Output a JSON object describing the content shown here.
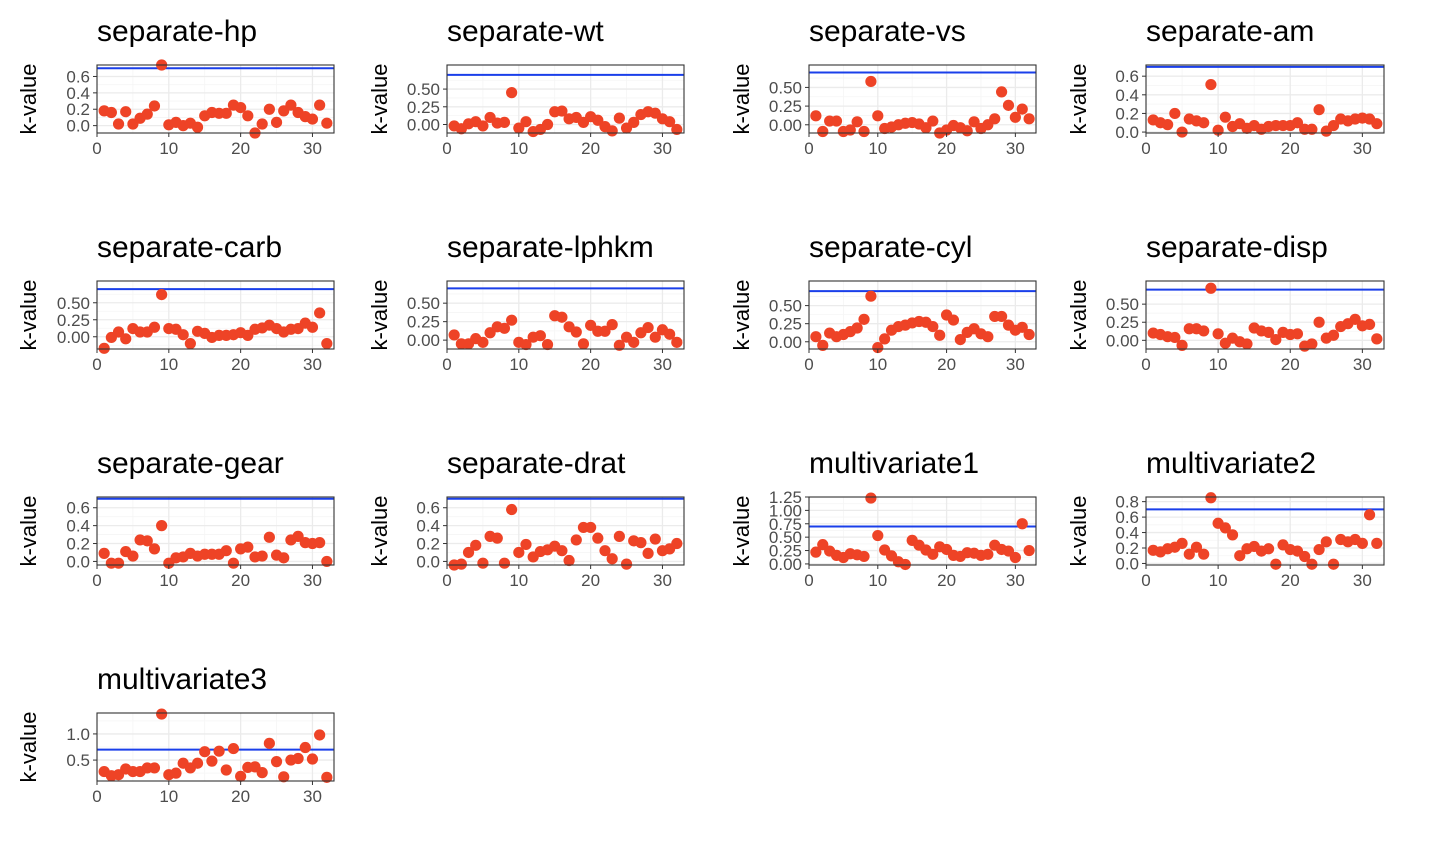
{
  "chart_data": [
    {
      "type": "scatter",
      "title": "separate-hp",
      "ylabel": "k-value",
      "xlim": [
        0,
        33
      ],
      "ylim": [
        -0.09,
        0.74
      ],
      "xticks": [
        0,
        10,
        20,
        30
      ],
      "yticks": [
        0.0,
        0.2,
        0.4,
        0.6
      ],
      "ytick_labels": [
        "0.0",
        "0.2",
        "0.4",
        "0.6"
      ],
      "threshold": 0.7,
      "x": [
        1,
        2,
        3,
        4,
        5,
        6,
        7,
        8,
        9,
        10,
        11,
        12,
        13,
        14,
        15,
        16,
        17,
        18,
        19,
        20,
        21,
        22,
        23,
        24,
        25,
        26,
        27,
        28,
        29,
        30,
        31,
        32
      ],
      "y": [
        0.18,
        0.16,
        0.02,
        0.17,
        0.02,
        0.09,
        0.14,
        0.24,
        0.74,
        0.01,
        0.04,
        0.0,
        0.03,
        -0.02,
        0.12,
        0.16,
        0.15,
        0.15,
        0.25,
        0.22,
        0.12,
        -0.09,
        0.02,
        0.2,
        0.04,
        0.18,
        0.25,
        0.16,
        0.11,
        0.08,
        0.25,
        0.03
      ]
    },
    {
      "type": "scatter",
      "title": "separate-wt",
      "ylabel": "k-value",
      "xlim": [
        0,
        33
      ],
      "ylim": [
        -0.12,
        0.84
      ],
      "xticks": [
        0,
        10,
        20,
        30
      ],
      "yticks": [
        0.0,
        0.25,
        0.5
      ],
      "ytick_labels": [
        "0.00",
        "0.25",
        "0.50"
      ],
      "threshold": 0.7,
      "x": [
        1,
        2,
        3,
        4,
        5,
        6,
        7,
        8,
        9,
        10,
        11,
        12,
        13,
        14,
        15,
        16,
        17,
        18,
        19,
        20,
        21,
        22,
        23,
        24,
        25,
        26,
        27,
        28,
        29,
        30,
        31,
        32
      ],
      "y": [
        -0.02,
        -0.06,
        0.01,
        0.04,
        -0.02,
        0.1,
        0.02,
        0.03,
        0.45,
        -0.05,
        0.04,
        -0.1,
        -0.07,
        0.0,
        0.18,
        0.19,
        0.08,
        0.1,
        0.03,
        0.11,
        0.06,
        -0.03,
        -0.09,
        0.09,
        -0.05,
        0.03,
        0.14,
        0.18,
        0.16,
        0.08,
        0.04,
        -0.07
      ]
    },
    {
      "type": "scatter",
      "title": "separate-vs",
      "ylabel": "k-value",
      "xlim": [
        0,
        33
      ],
      "ylim": [
        -0.11,
        0.8
      ],
      "xticks": [
        0,
        10,
        20,
        30
      ],
      "yticks": [
        0.0,
        0.25,
        0.5
      ],
      "ytick_labels": [
        "0.00",
        "0.25",
        "0.50"
      ],
      "threshold": 0.7,
      "x": [
        1,
        2,
        3,
        4,
        5,
        6,
        7,
        8,
        9,
        10,
        11,
        12,
        13,
        14,
        15,
        16,
        17,
        18,
        19,
        20,
        21,
        22,
        23,
        24,
        25,
        26,
        27,
        28,
        29,
        30,
        31,
        32
      ],
      "y": [
        0.12,
        -0.09,
        0.05,
        0.05,
        -0.09,
        -0.07,
        0.04,
        -0.09,
        0.58,
        0.12,
        -0.05,
        -0.03,
        0.0,
        0.02,
        0.03,
        0.01,
        -0.04,
        0.05,
        -0.11,
        -0.07,
        -0.01,
        -0.04,
        -0.08,
        0.04,
        -0.05,
        0.0,
        0.08,
        0.44,
        0.26,
        0.1,
        0.21,
        0.08
      ]
    },
    {
      "type": "scatter",
      "title": "separate-am",
      "ylabel": "k-value",
      "xlim": [
        0,
        33
      ],
      "ylim": [
        -0.01,
        0.72
      ],
      "xticks": [
        0,
        10,
        20,
        30
      ],
      "yticks": [
        0.0,
        0.2,
        0.4,
        0.6
      ],
      "ytick_labels": [
        "0.0",
        "0.2",
        "0.4",
        "0.6"
      ],
      "threshold": 0.7,
      "x": [
        1,
        2,
        3,
        4,
        5,
        6,
        7,
        8,
        9,
        10,
        11,
        12,
        13,
        14,
        15,
        16,
        17,
        18,
        19,
        20,
        21,
        22,
        23,
        24,
        25,
        26,
        27,
        28,
        29,
        30,
        31,
        32
      ],
      "y": [
        0.13,
        0.1,
        0.08,
        0.2,
        0.0,
        0.14,
        0.12,
        0.1,
        0.51,
        0.02,
        0.16,
        0.06,
        0.09,
        0.04,
        0.07,
        0.03,
        0.06,
        0.07,
        0.07,
        0.07,
        0.1,
        0.03,
        0.03,
        0.24,
        0.01,
        0.07,
        0.14,
        0.12,
        0.14,
        0.15,
        0.14,
        0.09
      ]
    },
    {
      "type": "scatter",
      "title": "separate-carb",
      "ylabel": "k-value",
      "xlim": [
        0,
        33
      ],
      "ylim": [
        -0.18,
        0.82
      ],
      "xticks": [
        0,
        10,
        20,
        30
      ],
      "yticks": [
        0.0,
        0.25,
        0.5
      ],
      "ytick_labels": [
        "0.00",
        "0.25",
        "0.50"
      ],
      "threshold": 0.7,
      "x": [
        1,
        2,
        3,
        4,
        5,
        6,
        7,
        8,
        9,
        10,
        11,
        12,
        13,
        14,
        15,
        16,
        17,
        18,
        19,
        20,
        21,
        22,
        23,
        24,
        25,
        26,
        27,
        28,
        29,
        30,
        31,
        32
      ],
      "y": [
        -0.17,
        -0.01,
        0.07,
        -0.03,
        0.12,
        0.07,
        0.07,
        0.14,
        0.62,
        0.12,
        0.11,
        0.03,
        -0.1,
        0.08,
        0.05,
        -0.01,
        0.02,
        0.02,
        0.03,
        0.06,
        0.02,
        0.11,
        0.13,
        0.17,
        0.12,
        0.07,
        0.11,
        0.12,
        0.2,
        0.14,
        0.35,
        -0.1
      ]
    },
    {
      "type": "scatter",
      "title": "separate-lphkm",
      "ylabel": "k-value",
      "xlim": [
        0,
        33
      ],
      "ylim": [
        -0.12,
        0.8
      ],
      "xticks": [
        0,
        10,
        20,
        30
      ],
      "yticks": [
        0.0,
        0.25,
        0.5
      ],
      "ytick_labels": [
        "0.00",
        "0.25",
        "0.50"
      ],
      "threshold": 0.7,
      "x": [
        1,
        2,
        3,
        4,
        5,
        6,
        7,
        8,
        9,
        10,
        11,
        12,
        13,
        14,
        15,
        16,
        17,
        18,
        19,
        20,
        21,
        22,
        23,
        24,
        25,
        26,
        27,
        28,
        29,
        30,
        31,
        32
      ],
      "y": [
        0.07,
        -0.05,
        -0.05,
        0.02,
        -0.03,
        0.1,
        0.18,
        0.16,
        0.27,
        -0.03,
        -0.06,
        0.04,
        0.06,
        -0.06,
        0.33,
        0.31,
        0.18,
        0.11,
        -0.05,
        0.2,
        0.12,
        0.12,
        0.21,
        -0.07,
        0.04,
        -0.03,
        0.1,
        0.17,
        0.04,
        0.14,
        0.08,
        -0.03
      ]
    },
    {
      "type": "scatter",
      "title": "separate-cyl",
      "ylabel": "k-value",
      "xlim": [
        0,
        33
      ],
      "ylim": [
        -0.1,
        0.84
      ],
      "xticks": [
        0,
        10,
        20,
        30
      ],
      "yticks": [
        0.0,
        0.25,
        0.5
      ],
      "ytick_labels": [
        "0.00",
        "0.25",
        "0.50"
      ],
      "threshold": 0.7,
      "x": [
        1,
        2,
        3,
        4,
        5,
        6,
        7,
        8,
        9,
        10,
        11,
        12,
        13,
        14,
        15,
        16,
        17,
        18,
        19,
        20,
        21,
        22,
        23,
        24,
        25,
        26,
        27,
        28,
        29,
        30,
        31,
        32
      ],
      "y": [
        0.07,
        -0.05,
        0.12,
        0.07,
        0.1,
        0.14,
        0.19,
        0.31,
        0.63,
        -0.08,
        0.04,
        0.16,
        0.21,
        0.23,
        0.26,
        0.28,
        0.27,
        0.21,
        0.09,
        0.37,
        0.3,
        0.03,
        0.13,
        0.18,
        0.11,
        0.07,
        0.35,
        0.35,
        0.23,
        0.16,
        0.2,
        0.1
      ]
    },
    {
      "type": "scatter",
      "title": "separate-disp",
      "ylabel": "k-value",
      "xlim": [
        0,
        33
      ],
      "ylim": [
        -0.12,
        0.82
      ],
      "xticks": [
        0,
        10,
        20,
        30
      ],
      "yticks": [
        0.0,
        0.25,
        0.5
      ],
      "ytick_labels": [
        "0.00",
        "0.25",
        "0.50"
      ],
      "threshold": 0.7,
      "x": [
        1,
        2,
        3,
        4,
        5,
        6,
        7,
        8,
        9,
        10,
        11,
        12,
        13,
        14,
        15,
        16,
        17,
        18,
        19,
        20,
        21,
        22,
        23,
        24,
        25,
        26,
        27,
        28,
        29,
        30,
        31,
        32
      ],
      "y": [
        0.1,
        0.08,
        0.05,
        0.04,
        -0.07,
        0.16,
        0.16,
        0.13,
        0.72,
        0.09,
        -0.04,
        0.03,
        -0.02,
        -0.05,
        0.17,
        0.13,
        0.11,
        0.01,
        0.11,
        0.08,
        0.09,
        -0.08,
        -0.05,
        0.25,
        0.03,
        0.07,
        0.19,
        0.23,
        0.29,
        0.2,
        0.22,
        0.02
      ]
    },
    {
      "type": "scatter",
      "title": "separate-gear",
      "ylabel": "k-value",
      "xlim": [
        0,
        33
      ],
      "ylim": [
        -0.04,
        0.72
      ],
      "xticks": [
        0,
        10,
        20,
        30
      ],
      "yticks": [
        0.0,
        0.2,
        0.4,
        0.6
      ],
      "ytick_labels": [
        "0.0",
        "0.2",
        "0.4",
        "0.6"
      ],
      "threshold": 0.7,
      "x": [
        1,
        2,
        3,
        4,
        5,
        6,
        7,
        8,
        9,
        10,
        11,
        12,
        13,
        14,
        15,
        16,
        17,
        18,
        19,
        20,
        21,
        22,
        23,
        24,
        25,
        26,
        27,
        28,
        29,
        30,
        31,
        32
      ],
      "y": [
        0.09,
        -0.02,
        -0.02,
        0.11,
        0.06,
        0.24,
        0.23,
        0.14,
        0.4,
        -0.02,
        0.04,
        0.05,
        0.09,
        0.06,
        0.08,
        0.08,
        0.08,
        0.12,
        -0.02,
        0.14,
        0.16,
        0.05,
        0.06,
        0.27,
        0.07,
        0.04,
        0.24,
        0.28,
        0.21,
        0.2,
        0.21,
        0.0
      ]
    },
    {
      "type": "scatter",
      "title": "separate-drat",
      "ylabel": "k-value",
      "xlim": [
        0,
        33
      ],
      "ylim": [
        -0.04,
        0.72
      ],
      "xticks": [
        0,
        10,
        20,
        30
      ],
      "yticks": [
        0.0,
        0.2,
        0.4,
        0.6
      ],
      "ytick_labels": [
        "0.0",
        "0.2",
        "0.4",
        "0.6"
      ],
      "threshold": 0.7,
      "x": [
        1,
        2,
        3,
        4,
        5,
        6,
        7,
        8,
        9,
        10,
        11,
        12,
        13,
        14,
        15,
        16,
        17,
        18,
        19,
        20,
        21,
        22,
        23,
        24,
        25,
        26,
        27,
        28,
        29,
        30,
        31,
        32
      ],
      "y": [
        -0.04,
        -0.03,
        0.1,
        0.18,
        -0.02,
        0.28,
        0.26,
        -0.02,
        0.58,
        0.1,
        0.19,
        0.05,
        0.11,
        0.13,
        0.17,
        0.12,
        0.01,
        0.24,
        0.38,
        0.38,
        0.26,
        0.12,
        0.03,
        0.28,
        -0.03,
        0.23,
        0.21,
        0.09,
        0.25,
        0.12,
        0.14,
        0.2
      ]
    },
    {
      "type": "scatter",
      "title": "multivariate1",
      "ylabel": "k-value",
      "xlim": [
        0,
        33
      ],
      "ylim": [
        -0.02,
        1.25
      ],
      "xticks": [
        0,
        10,
        20,
        30
      ],
      "yticks": [
        0.0,
        0.25,
        0.5,
        0.75,
        1.0,
        1.25
      ],
      "ytick_labels": [
        "0.00",
        "0.25",
        "0.50",
        "0.75",
        "1.00",
        "1.25"
      ],
      "threshold": 0.7,
      "x": [
        1,
        2,
        3,
        4,
        5,
        6,
        7,
        8,
        9,
        10,
        11,
        12,
        13,
        14,
        15,
        16,
        17,
        18,
        19,
        20,
        21,
        22,
        23,
        24,
        25,
        26,
        27,
        28,
        29,
        30,
        31,
        32
      ],
      "y": [
        0.22,
        0.36,
        0.24,
        0.16,
        0.12,
        0.19,
        0.17,
        0.14,
        1.23,
        0.53,
        0.26,
        0.15,
        0.04,
        -0.01,
        0.44,
        0.35,
        0.26,
        0.18,
        0.32,
        0.27,
        0.16,
        0.14,
        0.21,
        0.2,
        0.16,
        0.18,
        0.35,
        0.27,
        0.24,
        0.12,
        0.75,
        0.25
      ]
    },
    {
      "type": "scatter",
      "title": "multivariate2",
      "ylabel": "k-value",
      "xlim": [
        0,
        33
      ],
      "ylim": [
        -0.02,
        0.86
      ],
      "xticks": [
        0,
        10,
        20,
        30
      ],
      "yticks": [
        0.0,
        0.2,
        0.4,
        0.6,
        0.8
      ],
      "ytick_labels": [
        "0.0",
        "0.2",
        "0.4",
        "0.6",
        "0.8"
      ],
      "threshold": 0.7,
      "x": [
        1,
        2,
        3,
        4,
        5,
        6,
        7,
        8,
        9,
        10,
        11,
        12,
        13,
        14,
        15,
        16,
        17,
        18,
        19,
        20,
        21,
        22,
        23,
        24,
        25,
        26,
        27,
        28,
        29,
        30,
        31,
        32
      ],
      "y": [
        0.17,
        0.15,
        0.19,
        0.21,
        0.26,
        0.12,
        0.21,
        0.12,
        0.85,
        0.52,
        0.46,
        0.37,
        0.1,
        0.19,
        0.22,
        0.16,
        0.19,
        -0.01,
        0.24,
        0.18,
        0.16,
        0.09,
        -0.01,
        0.18,
        0.28,
        -0.01,
        0.31,
        0.28,
        0.31,
        0.26,
        0.63,
        0.26
      ]
    },
    {
      "type": "scatter",
      "title": "multivariate3",
      "ylabel": "k-value",
      "xlim": [
        0,
        33
      ],
      "ylim": [
        0.1,
        1.4
      ],
      "xticks": [
        0,
        10,
        20,
        30
      ],
      "yticks": [
        0.5,
        1.0
      ],
      "ytick_labels": [
        "0.5",
        "1.0"
      ],
      "threshold": 0.7,
      "x": [
        1,
        2,
        3,
        4,
        5,
        6,
        7,
        8,
        9,
        10,
        11,
        12,
        13,
        14,
        15,
        16,
        17,
        18,
        19,
        20,
        21,
        22,
        23,
        24,
        25,
        26,
        27,
        28,
        29,
        30,
        31,
        32
      ],
      "y": [
        0.28,
        0.2,
        0.22,
        0.33,
        0.28,
        0.28,
        0.35,
        0.35,
        1.38,
        0.22,
        0.25,
        0.44,
        0.35,
        0.44,
        0.66,
        0.48,
        0.67,
        0.31,
        0.72,
        0.19,
        0.36,
        0.37,
        0.26,
        0.82,
        0.47,
        0.18,
        0.5,
        0.53,
        0.74,
        0.52,
        0.98,
        0.17
      ]
    }
  ],
  "colors": {
    "points": "#EE4326",
    "threshold_line": "#1A3FEA",
    "grid_major": "#EBEBEB",
    "grid_minor": "#F5F5F5",
    "panel_border": "#333333",
    "tick_text": "#4D4D4D"
  }
}
